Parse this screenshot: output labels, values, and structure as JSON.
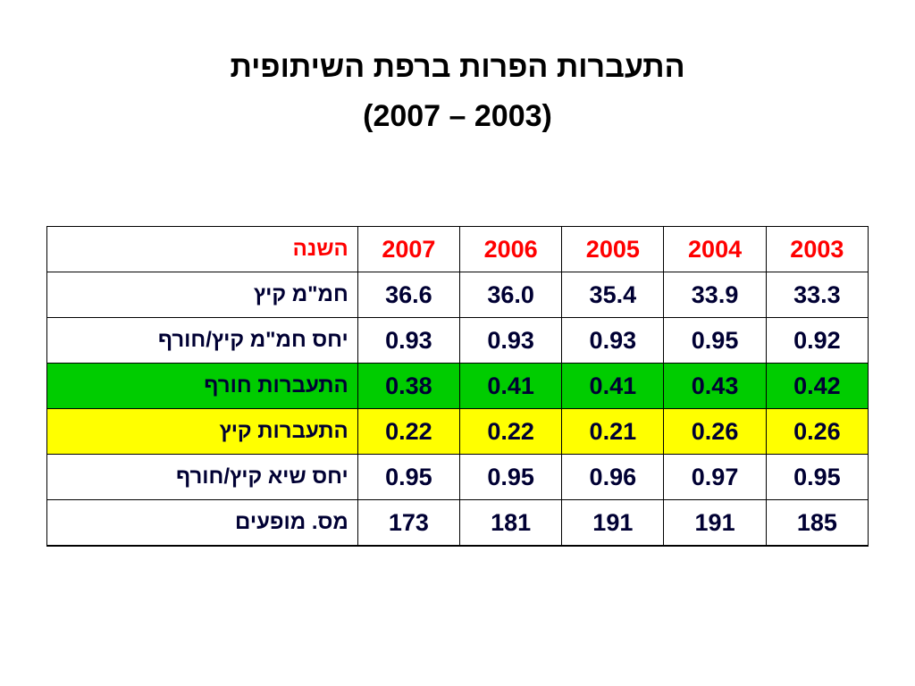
{
  "header": {
    "title": "התעברות הפרות ברפת השיתופית",
    "subtitle": "(2007 – 2003)"
  },
  "table": {
    "rows": [
      [
        "השנה",
        "2007",
        "2006",
        "2005",
        "2004",
        "2003"
      ],
      [
        "חמ\"מ קיץ",
        "36.6",
        "36.0",
        "35.4",
        "33.9",
        "33.3"
      ],
      [
        "יחס חמ\"מ קיץ/חורף",
        "0.93",
        "0.93",
        "0.93",
        "0.95",
        "0.92"
      ],
      [
        "התעברות חורף",
        "0.38",
        "0.41",
        "0.41",
        "0.43",
        "0.42"
      ],
      [
        "התעברות קיץ",
        "0.22",
        "0.22",
        "0.21",
        "0.26",
        "0.26"
      ],
      [
        "יחס שיא קיץ/חורף",
        "0.95",
        "0.95",
        "0.96",
        "0.97",
        "0.95"
      ],
      [
        "מס. מופעים",
        "173",
        "181",
        "191",
        "191",
        "185"
      ]
    ]
  }
}
